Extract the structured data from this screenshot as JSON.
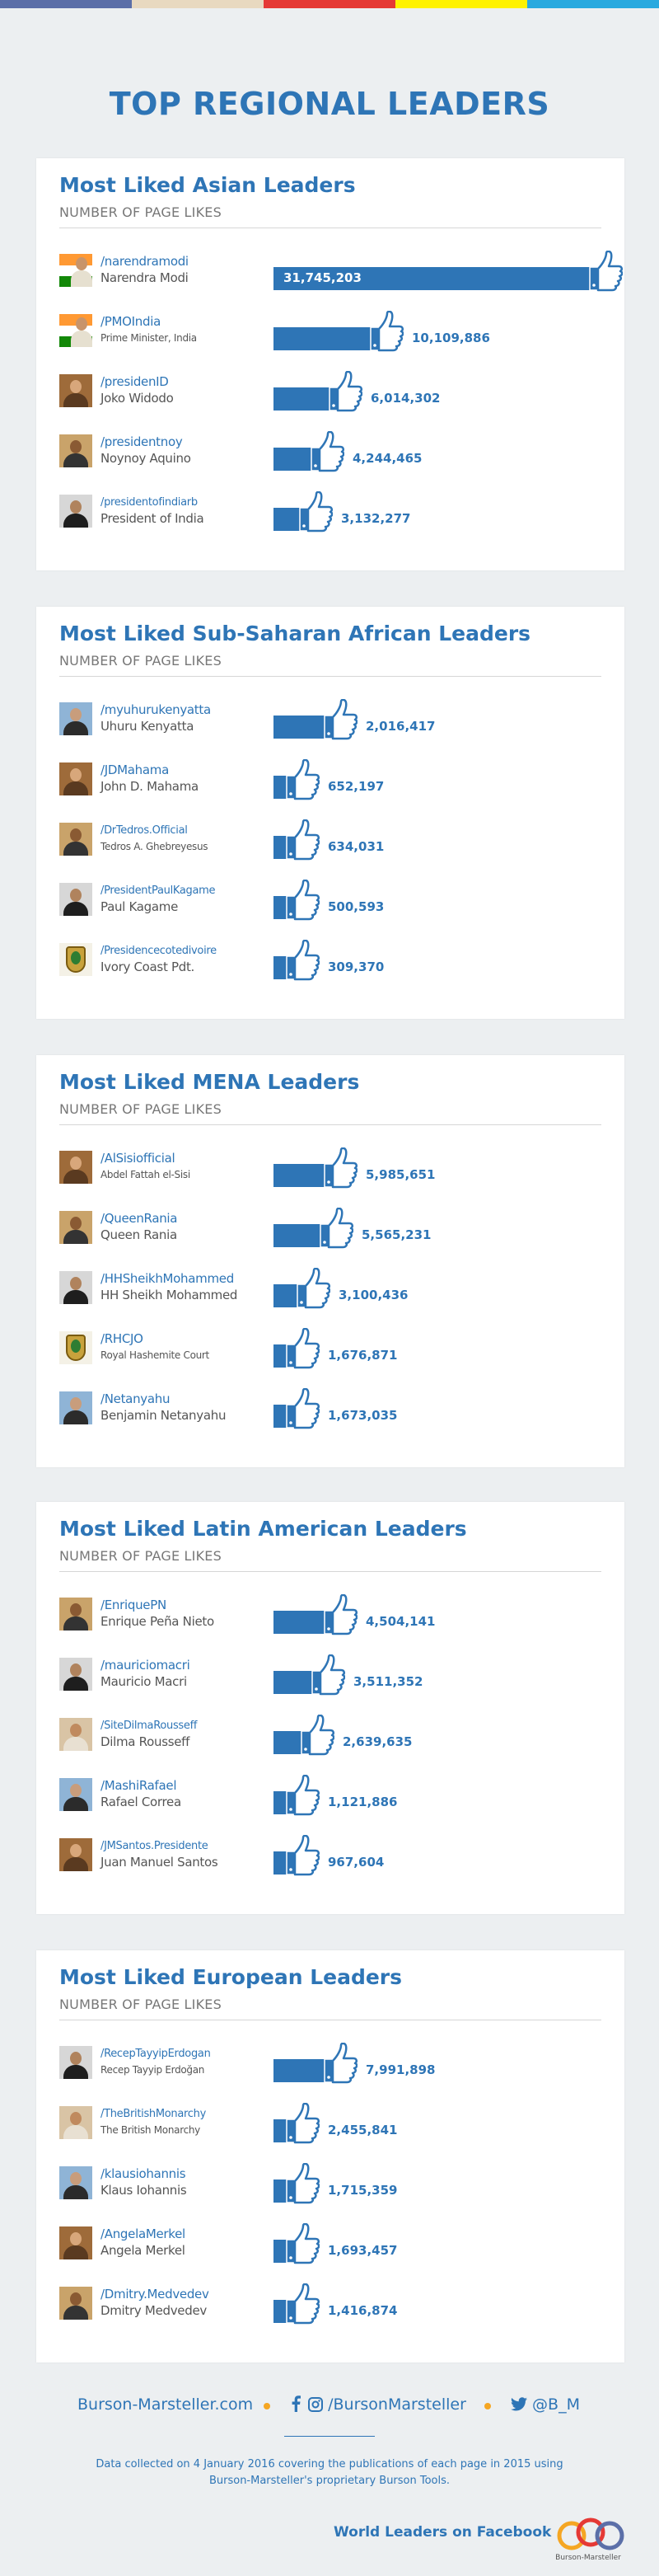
{
  "colors": {
    "accent": "#2e75b6",
    "stripe": [
      "#5b6fa8",
      "#e8d9c0",
      "#e53935",
      "#fff200",
      "#29a9df"
    ],
    "orange": "#f5a623"
  },
  "title": "TOP REGIONAL LEADERS",
  "sections": [
    {
      "title": "Most Liked Asian Leaders",
      "subtitle": "NUMBER OF PAGE LIKES",
      "rows": [
        {
          "handle": "/narendramodi",
          "name": "Narendra Modi",
          "likes": 31745203,
          "label": "31,745,203",
          "avatar": "flag-india"
        },
        {
          "handle": "/PMOIndia",
          "name": "Prime Minister, India",
          "likes": 10109886,
          "label": "10,109,886",
          "avatar": "flag-india"
        },
        {
          "handle": "/presidenID",
          "name": "Joko Widodo",
          "likes": 6014302,
          "label": "6,014,302",
          "avatar": "portrait"
        },
        {
          "handle": "/presidentnoy",
          "name": "Noynoy Aquino",
          "likes": 4244465,
          "label": "4,244,465",
          "avatar": "portrait"
        },
        {
          "handle": "/presidentofindiarb",
          "name": "President of India",
          "likes": 3132277,
          "label": "3,132,277",
          "avatar": "portrait"
        }
      ]
    },
    {
      "title": "Most Liked Sub-Saharan African Leaders",
      "subtitle": "NUMBER OF PAGE LIKES",
      "rows": [
        {
          "handle": "/myuhurukenyatta",
          "name": "Uhuru Kenyatta",
          "likes": 2016417,
          "label": "2,016,417",
          "avatar": "portrait"
        },
        {
          "handle": "/JDMahama",
          "name": "John D. Mahama",
          "likes": 652197,
          "label": "652,197",
          "avatar": "portrait"
        },
        {
          "handle": "/DrTedros.Official",
          "name": "Tedros A. Ghebreyesus",
          "likes": 634031,
          "label": "634,031",
          "avatar": "portrait"
        },
        {
          "handle": "/PresidentPaulKagame",
          "name": "Paul Kagame",
          "likes": 500593,
          "label": "500,593",
          "avatar": "portrait"
        },
        {
          "handle": "/Presidencecotedivoire",
          "name": "Ivory Coast Pdt.",
          "likes": 309370,
          "label": "309,370",
          "avatar": "emblem"
        }
      ]
    },
    {
      "title": "Most Liked MENA Leaders",
      "subtitle": "NUMBER OF PAGE LIKES",
      "rows": [
        {
          "handle": "/AlSisiofficial",
          "name": "Abdel Fattah el-Sisi",
          "likes": 5985651,
          "label": "5,985,651",
          "avatar": "portrait"
        },
        {
          "handle": "/QueenRania",
          "name": "Queen Rania",
          "likes": 5565231,
          "label": "5,565,231",
          "avatar": "portrait"
        },
        {
          "handle": "/HHSheikhMohammed",
          "name": "HH Sheikh Mohammed",
          "likes": 3100436,
          "label": "3,100,436",
          "avatar": "portrait"
        },
        {
          "handle": "/RHCJO",
          "name": "Royal Hashemite Court",
          "likes": 1676871,
          "label": "1,676,871",
          "avatar": "emblem"
        },
        {
          "handle": "/Netanyahu",
          "name": "Benjamin Netanyahu",
          "likes": 1673035,
          "label": "1,673,035",
          "avatar": "portrait"
        }
      ]
    },
    {
      "title": "Most Liked Latin American Leaders",
      "subtitle": "NUMBER OF PAGE LIKES",
      "rows": [
        {
          "handle": "/EnriquePN",
          "name": "Enrique Peña Nieto",
          "likes": 4504141,
          "label": "4,504,141",
          "avatar": "portrait"
        },
        {
          "handle": "/mauriciomacri",
          "name": "Mauricio Macri",
          "likes": 3511352,
          "label": "3,511,352",
          "avatar": "portrait"
        },
        {
          "handle": "/SiteDilmaRousseff",
          "name": "Dilma Rousseff",
          "likes": 2639635,
          "label": "2,639,635",
          "avatar": "portrait"
        },
        {
          "handle": "/MashiRafael",
          "name": "Rafael Correa",
          "likes": 1121886,
          "label": "1,121,886",
          "avatar": "portrait"
        },
        {
          "handle": "/JMSantos.Presidente",
          "name": "Juan Manuel Santos",
          "likes": 967604,
          "label": "967,604",
          "avatar": "portrait"
        }
      ]
    },
    {
      "title": "Most Liked European Leaders",
      "subtitle": "NUMBER OF PAGE LIKES",
      "rows": [
        {
          "handle": "/RecepTayyipErdogan",
          "name": "Recep Tayyip Erdoğan",
          "likes": 7991898,
          "label": "7,991,898",
          "avatar": "portrait"
        },
        {
          "handle": "/TheBritishMonarchy",
          "name": "The British Monarchy",
          "likes": 2455841,
          "label": "2,455,841",
          "avatar": "portrait"
        },
        {
          "handle": "/klausiohannis",
          "name": "Klaus Iohannis",
          "likes": 1715359,
          "label": "1,715,359",
          "avatar": "portrait"
        },
        {
          "handle": "/AngelaMerkel",
          "name": "Angela Merkel",
          "likes": 1693457,
          "label": "1,693,457",
          "avatar": "portrait"
        },
        {
          "handle": "/Dmitry.Medvedev",
          "name": "Dmitry Medvedev",
          "likes": 1416874,
          "label": "1,416,874",
          "avatar": "portrait"
        }
      ]
    }
  ],
  "chart_data": [
    {
      "type": "bar",
      "title": "Most Liked Asian Leaders",
      "ylabel": "NUMBER OF PAGE LIKES",
      "categories": [
        "/narendramodi",
        "/PMOIndia",
        "/presidenID",
        "/presidentnoy",
        "/presidentofindiarb"
      ],
      "values": [
        31745203,
        10109886,
        6014302,
        4244465,
        3132277
      ]
    },
    {
      "type": "bar",
      "title": "Most Liked Sub-Saharan African Leaders",
      "ylabel": "NUMBER OF PAGE LIKES",
      "categories": [
        "/myuhurukenyatta",
        "/JDMahama",
        "/DrTedros.Official",
        "/PresidentPaulKagame",
        "/Presidencecotedivoire"
      ],
      "values": [
        2016417,
        652197,
        634031,
        500593,
        309370
      ]
    },
    {
      "type": "bar",
      "title": "Most Liked MENA Leaders",
      "ylabel": "NUMBER OF PAGE LIKES",
      "categories": [
        "/AlSisiofficial",
        "/QueenRania",
        "/HHSheikhMohammed",
        "/RHCJO",
        "/Netanyahu"
      ],
      "values": [
        5985651,
        5565231,
        3100436,
        1676871,
        1673035
      ]
    },
    {
      "type": "bar",
      "title": "Most Liked Latin American Leaders",
      "ylabel": "NUMBER OF PAGE LIKES",
      "categories": [
        "/EnriquePN",
        "/mauriciomacri",
        "/SiteDilmaRousseff",
        "/MashiRafael",
        "/JMSantos.Presidente"
      ],
      "values": [
        4504141,
        3511352,
        2639635,
        1121886,
        967604
      ]
    },
    {
      "type": "bar",
      "title": "Most Liked European Leaders",
      "ylabel": "NUMBER OF PAGE LIKES",
      "categories": [
        "/RecepTayyipErdogan",
        "/TheBritishMonarchy",
        "/klausiohannis",
        "/AngelaMerkel",
        "/Dmitry.Medvedev"
      ],
      "values": [
        7991898,
        2455841,
        1715359,
        1693457,
        1416874
      ]
    }
  ],
  "footer": {
    "website": "Burson-Marsteller.com",
    "facebook": "/BursonMarsteller",
    "twitter": "@B_M",
    "icons": [
      "facebook-icon",
      "instagram-icon",
      "twitter-icon"
    ],
    "note": "Data collected on 4 January 2016 covering the publications of each page in 2015 using Burson-Marsteller's proprietary Burson Tools.",
    "tagline": "World Leaders on Facebook",
    "logo_text": "Burson-Marsteller"
  }
}
